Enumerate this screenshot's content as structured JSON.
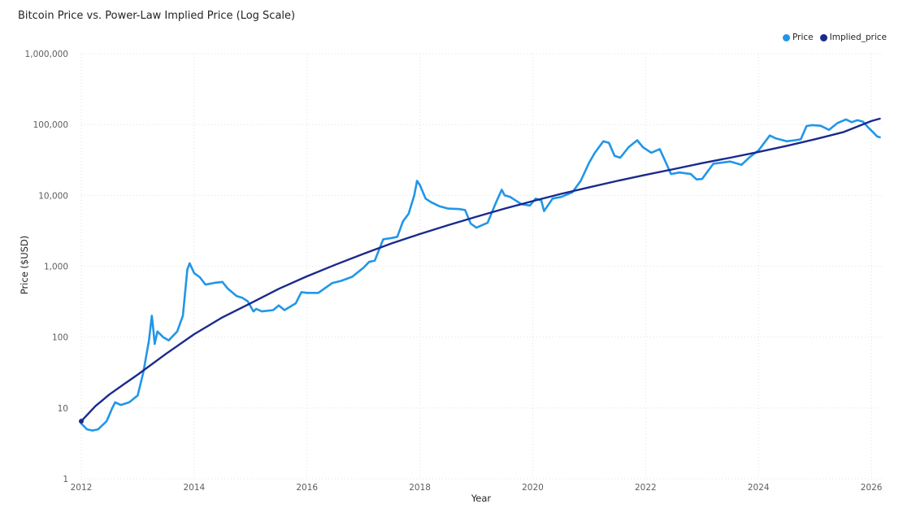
{
  "chart_data": {
    "type": "line",
    "title": "Bitcoin Price vs. Power-Law Implied Price (Log Scale)",
    "xlabel": "Year",
    "ylabel": "Price ($USD)",
    "x_range": [
      2012,
      2026.2
    ],
    "y_scale": "log",
    "y_range": [
      1,
      1000000
    ],
    "x_ticks": [
      2012,
      2014,
      2016,
      2018,
      2020,
      2022,
      2024,
      2026
    ],
    "y_ticks": [
      1,
      10,
      100,
      1000,
      10000,
      100000,
      1000000
    ],
    "y_tick_labels": [
      "1",
      "10",
      "100",
      "1,000",
      "10,000",
      "100,000",
      "1,000,000"
    ],
    "legend_position": "top-right",
    "series": [
      {
        "name": "Price",
        "color": "#2196e8",
        "x": [
          2012.0,
          2012.05,
          2012.1,
          2012.2,
          2012.3,
          2012.45,
          2012.55,
          2012.6,
          2012.7,
          2012.85,
          2013.0,
          2013.1,
          2013.2,
          2013.25,
          2013.28,
          2013.3,
          2013.35,
          2013.45,
          2013.55,
          2013.7,
          2013.8,
          2013.88,
          2013.92,
          2014.0,
          2014.1,
          2014.2,
          2014.35,
          2014.5,
          2014.6,
          2014.75,
          2014.85,
          2014.95,
          2015.05,
          2015.1,
          2015.2,
          2015.4,
          2015.5,
          2015.6,
          2015.8,
          2015.9,
          2016.0,
          2016.2,
          2016.45,
          2016.6,
          2016.8,
          2017.0,
          2017.1,
          2017.2,
          2017.35,
          2017.5,
          2017.6,
          2017.7,
          2017.8,
          2017.9,
          2017.95,
          2018.0,
          2018.1,
          2018.2,
          2018.35,
          2018.5,
          2018.7,
          2018.8,
          2018.9,
          2019.0,
          2019.2,
          2019.35,
          2019.45,
          2019.5,
          2019.6,
          2019.8,
          2019.95,
          2020.05,
          2020.15,
          2020.2,
          2020.35,
          2020.5,
          2020.7,
          2020.85,
          2021.0,
          2021.1,
          2021.25,
          2021.35,
          2021.45,
          2021.55,
          2021.7,
          2021.85,
          2021.95,
          2022.1,
          2022.25,
          2022.35,
          2022.45,
          2022.6,
          2022.8,
          2022.9,
          2023.0,
          2023.2,
          2023.5,
          2023.7,
          2023.85,
          2024.0,
          2024.1,
          2024.2,
          2024.3,
          2024.5,
          2024.65,
          2024.75,
          2024.85,
          2024.95,
          2025.1,
          2025.25,
          2025.4,
          2025.55,
          2025.65,
          2025.75,
          2025.85,
          2025.95,
          2026.05,
          2026.1,
          2026.15
        ],
        "values": [
          6,
          5.5,
          5,
          4.8,
          5.0,
          6.5,
          10,
          12,
          11,
          12,
          15,
          32,
          90,
          200,
          120,
          80,
          120,
          100,
          90,
          120,
          200,
          900,
          1100,
          800,
          700,
          550,
          580,
          600,
          480,
          380,
          360,
          320,
          230,
          250,
          230,
          240,
          280,
          240,
          300,
          430,
          420,
          420,
          580,
          620,
          710,
          950,
          1150,
          1200,
          2400,
          2500,
          2600,
          4300,
          5500,
          10000,
          16000,
          14000,
          9000,
          8000,
          7000,
          6500,
          6400,
          6200,
          4000,
          3500,
          4100,
          8000,
          12000,
          10000,
          9500,
          7500,
          7200,
          9000,
          8500,
          6000,
          9000,
          9500,
          11000,
          16000,
          29000,
          40000,
          58000,
          55000,
          36000,
          34000,
          48000,
          60000,
          48000,
          40000,
          45000,
          30000,
          20000,
          21000,
          20000,
          16800,
          17000,
          28000,
          30000,
          27000,
          35000,
          43000,
          55000,
          70000,
          64000,
          58000,
          60000,
          62000,
          95000,
          98000,
          96000,
          84000,
          105000,
          118000,
          108000,
          115000,
          110000,
          90000,
          75000,
          68000,
          66000
        ]
      },
      {
        "name": "Implied_price",
        "color": "#1a2a8c",
        "x": [
          2012.0,
          2012.25,
          2012.5,
          2012.75,
          2013.0,
          2013.5,
          2014.0,
          2014.5,
          2015.0,
          2015.5,
          2016.0,
          2016.5,
          2017.0,
          2017.5,
          2018.0,
          2018.5,
          2019.0,
          2019.5,
          2020.0,
          2020.5,
          2021.0,
          2021.5,
          2022.0,
          2022.5,
          2023.0,
          2023.5,
          2024.0,
          2024.5,
          2025.0,
          2025.5,
          2026.0,
          2026.15
        ],
        "values": [
          6.5,
          10.6,
          15.5,
          21.5,
          29.5,
          58,
          110,
          190,
          300,
          480,
          720,
          1050,
          1500,
          2100,
          2850,
          3800,
          5000,
          6500,
          8300,
          10500,
          13000,
          16000,
          19500,
          23500,
          28500,
          34000,
          41000,
          50000,
          62000,
          78000,
          112000,
          121000
        ]
      }
    ]
  }
}
